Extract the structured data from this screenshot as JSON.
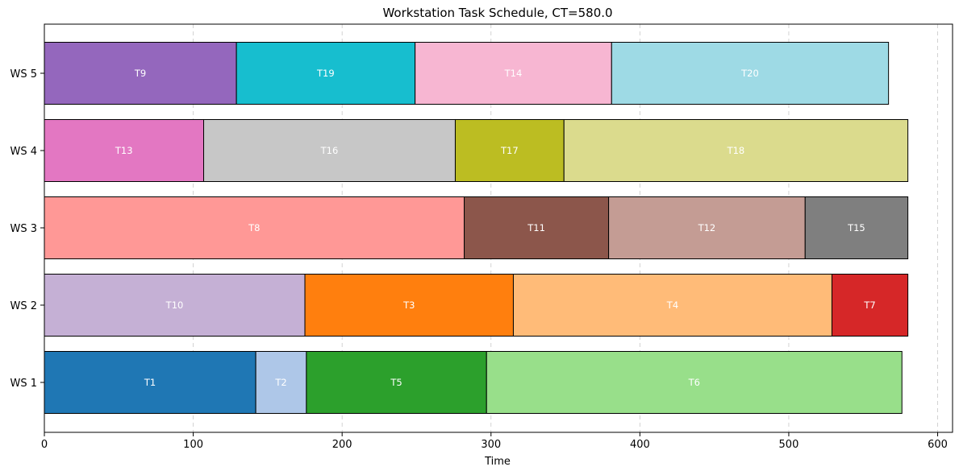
{
  "chart_data": {
    "type": "bar",
    "orientation": "horizontal-stacked",
    "title": "Workstation Task Schedule, CT=580.0",
    "xlabel": "Time",
    "ylabel": "",
    "xlim": [
      0,
      610
    ],
    "xticks": [
      0,
      100,
      200,
      300,
      400,
      500,
      600
    ],
    "grid": "x-dashed",
    "categories": [
      "WS 1",
      "WS 2",
      "WS 3",
      "WS 4",
      "WS 5"
    ],
    "tasks": [
      {
        "station": "WS 1",
        "label": "T1",
        "start": 0,
        "end": 142,
        "color": "#1f77b4"
      },
      {
        "station": "WS 1",
        "label": "T2",
        "start": 142,
        "end": 176,
        "color": "#aec7e8"
      },
      {
        "station": "WS 1",
        "label": "T5",
        "start": 176,
        "end": 297,
        "color": "#2ca02c"
      },
      {
        "station": "WS 1",
        "label": "T6",
        "start": 297,
        "end": 576,
        "color": "#98df8a"
      },
      {
        "station": "WS 2",
        "label": "T10",
        "start": 0,
        "end": 175,
        "color": "#c5b0d5"
      },
      {
        "station": "WS 2",
        "label": "T3",
        "start": 175,
        "end": 315,
        "color": "#ff7f0e"
      },
      {
        "station": "WS 2",
        "label": "T4",
        "start": 315,
        "end": 529,
        "color": "#ffbb78"
      },
      {
        "station": "WS 2",
        "label": "T7",
        "start": 529,
        "end": 580,
        "color": "#d62728"
      },
      {
        "station": "WS 3",
        "label": "T8",
        "start": 0,
        "end": 282,
        "color": "#ff9896"
      },
      {
        "station": "WS 3",
        "label": "T11",
        "start": 282,
        "end": 379,
        "color": "#8c564b"
      },
      {
        "station": "WS 3",
        "label": "T12",
        "start": 379,
        "end": 511,
        "color": "#c49c94"
      },
      {
        "station": "WS 3",
        "label": "T15",
        "start": 511,
        "end": 580,
        "color": "#7f7f7f"
      },
      {
        "station": "WS 4",
        "label": "T13",
        "start": 0,
        "end": 107,
        "color": "#e377c2"
      },
      {
        "station": "WS 4",
        "label": "T16",
        "start": 107,
        "end": 276,
        "color": "#c7c7c7"
      },
      {
        "station": "WS 4",
        "label": "T17",
        "start": 276,
        "end": 349,
        "color": "#bcbd22"
      },
      {
        "station": "WS 4",
        "label": "T18",
        "start": 349,
        "end": 580,
        "color": "#dbdb8d"
      },
      {
        "station": "WS 5",
        "label": "T9",
        "start": 0,
        "end": 129,
        "color": "#9467bd"
      },
      {
        "station": "WS 5",
        "label": "T19",
        "start": 129,
        "end": 249,
        "color": "#17becf"
      },
      {
        "station": "WS 5",
        "label": "T14",
        "start": 249,
        "end": 381,
        "color": "#f7b6d2"
      },
      {
        "station": "WS 5",
        "label": "T20",
        "start": 381,
        "end": 567,
        "color": "#9edae5"
      }
    ]
  }
}
